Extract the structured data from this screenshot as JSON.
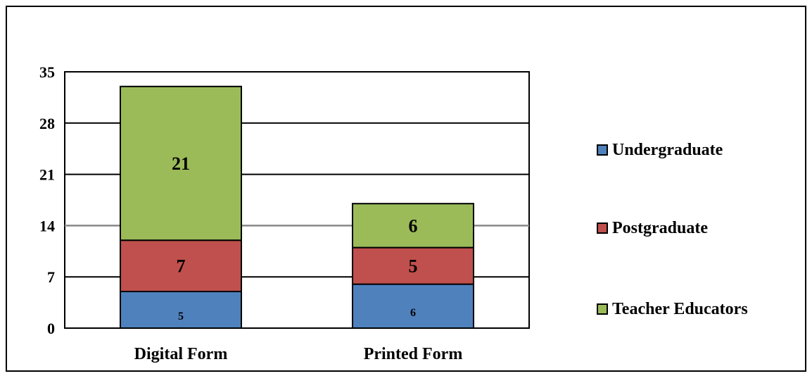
{
  "chart_data": {
    "type": "bar",
    "stacked": true,
    "categories": [
      "Digital Form",
      "Printed Form"
    ],
    "series": [
      {
        "name": "Undergraduate",
        "values": [
          5,
          6
        ],
        "color": "#4F81BD"
      },
      {
        "name": "Postgraduate",
        "values": [
          7,
          5
        ],
        "color": "#C0504D"
      },
      {
        "name": "Teacher Educators",
        "values": [
          21,
          6
        ],
        "color": "#9BBB59"
      }
    ],
    "title": "",
    "xlabel": "",
    "ylabel": "",
    "ylim": [
      0,
      35
    ],
    "yticks": [
      0,
      7,
      14,
      21,
      28,
      35
    ],
    "ytick_labels": [
      "0",
      "7",
      "14",
      "21",
      "28",
      "35"
    ],
    "grid": true,
    "legend_position": "right"
  }
}
